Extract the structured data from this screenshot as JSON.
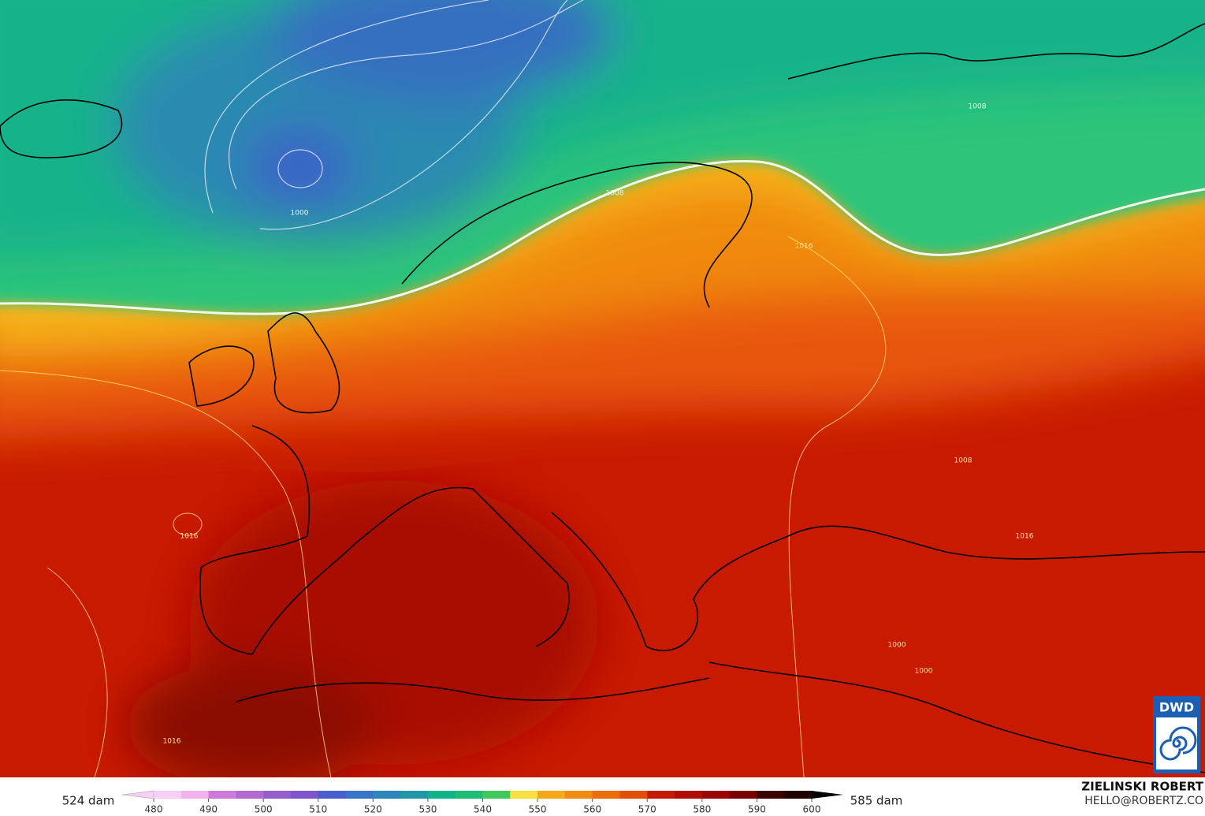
{
  "map": {
    "legend": {
      "left_label": "524 dam",
      "right_label": "585 dam",
      "ticks": [
        480,
        490,
        500,
        510,
        520,
        530,
        540,
        550,
        560,
        570,
        580,
        590,
        600
      ]
    },
    "contour_labels": [
      "1000",
      "1008",
      "1008",
      "1016",
      "1016",
      "1016",
      "1008",
      "1000",
      "1000",
      "1016"
    ],
    "credit": {
      "name": "ZIELINSKI ROBERT",
      "contact": "HELLO@ROBERTZ.CO"
    },
    "logo": "DWD"
  }
}
